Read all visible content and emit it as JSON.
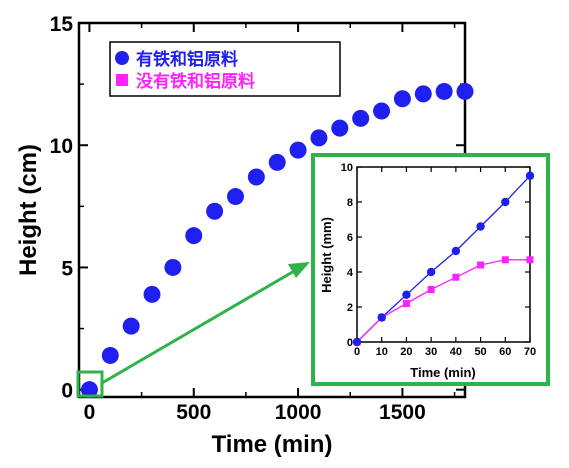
{
  "chart_data": [
    {
      "type": "scatter",
      "title": "",
      "xlabel": "Time (min)",
      "ylabel": "Height (cm)",
      "xlim": [
        -50,
        1800
      ],
      "ylim": [
        -0.3,
        15
      ],
      "x_ticks": [
        "0",
        "500",
        "1000",
        "1500"
      ],
      "y_ticks": [
        "0",
        "5",
        "10",
        "15"
      ],
      "legend_position": "top-left",
      "series": [
        {
          "name": "有铁和铝原料",
          "color": "#1f1fef",
          "marker": "circle",
          "points": [
            [
              0,
              0.0
            ],
            [
              100,
              1.4
            ],
            [
              200,
              2.6
            ],
            [
              300,
              3.9
            ],
            [
              400,
              5.0
            ],
            [
              500,
              6.3
            ],
            [
              600,
              7.3
            ],
            [
              700,
              7.9
            ],
            [
              800,
              8.7
            ],
            [
              900,
              9.3
            ],
            [
              1000,
              9.8
            ],
            [
              1100,
              10.3
            ],
            [
              1200,
              10.7
            ],
            [
              1300,
              11.1
            ],
            [
              1400,
              11.4
            ],
            [
              1500,
              11.9
            ],
            [
              1600,
              12.1
            ],
            [
              1700,
              12.2
            ],
            [
              1800,
              12.2
            ]
          ]
        },
        {
          "name": "没有铁和铝原料",
          "color": "#ff22ff",
          "marker": "square",
          "points": []
        }
      ]
    },
    {
      "type": "line",
      "title": "",
      "xlabel": "Time (min)",
      "ylabel": "Height (mm)",
      "xlim": [
        0,
        70
      ],
      "ylim": [
        0,
        10
      ],
      "x_ticks": [
        "0",
        "10",
        "20",
        "30",
        "40",
        "50",
        "60",
        "70"
      ],
      "y_ticks": [
        "0",
        "2",
        "4",
        "6",
        "8",
        "10"
      ],
      "series": [
        {
          "color": "#1f1fef",
          "marker": "circle",
          "points": [
            [
              0,
              0
            ],
            [
              10,
              1.4
            ],
            [
              20,
              2.7
            ],
            [
              30,
              4.0
            ],
            [
              40,
              5.2
            ],
            [
              50,
              6.6
            ],
            [
              60,
              8.0
            ],
            [
              70,
              9.5
            ]
          ]
        },
        {
          "color": "#ff22ff",
          "marker": "square",
          "points": [
            [
              0,
              0
            ],
            [
              10,
              1.4
            ],
            [
              20,
              2.2
            ],
            [
              30,
              3.0
            ],
            [
              40,
              3.7
            ],
            [
              50,
              4.4
            ],
            [
              60,
              4.7
            ],
            [
              70,
              4.7
            ]
          ]
        }
      ]
    }
  ],
  "colors": {
    "callout_green": "#2db34a"
  }
}
